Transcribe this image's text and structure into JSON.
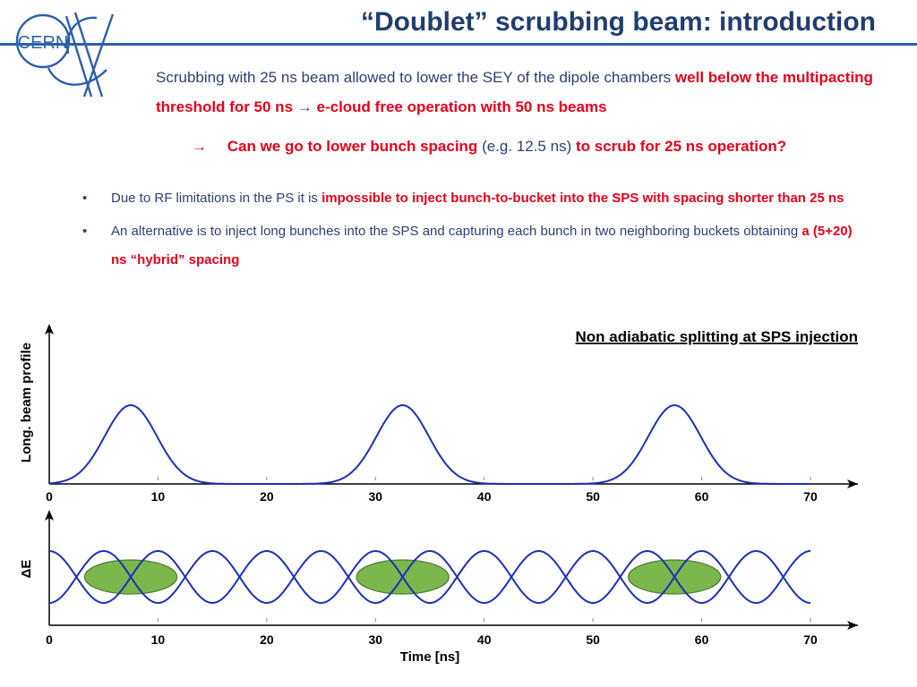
{
  "header": {
    "logo_text": "CERN",
    "title": "“Doublet” scrubbing beam: introduction"
  },
  "intro": {
    "p1_text": "Scrubbing with 25 ns beam allowed to lower the SEY of the dipole chambers ",
    "p1_red": "well below the multipacting threshold for 50 ns",
    "p1_arrow": "→",
    "p1_red2": "e-cloud free operation with 50 ns beams",
    "p2_arrow": "→",
    "p2_red1": "Can we go to lower bunch spacing",
    "p2_gray": "(e.g. 12.5 ns)",
    "p2_red2": "to scrub for 25 ns operation?"
  },
  "bullets": [
    {
      "dot": "•",
      "text": "Due to RF limitations in the PS it is ",
      "red": "impossible to inject bunch-to-bucket into the SPS with spacing shorter than 25 ns"
    },
    {
      "dot": "•",
      "text": "An alternative is to inject long bunches into the SPS and capturing each bunch in two neighboring buckets obtaining ",
      "red": "a (5+20) ns “hybrid” spacing"
    }
  ],
  "chart_data": [
    {
      "type": "line",
      "title": "Non adiabatic splitting at SPS injection",
      "ylabel": "Long. beam profile",
      "xlabel": "",
      "xlim": [
        0,
        70
      ],
      "x_ticks": [
        0,
        10,
        20,
        30,
        40,
        50,
        60,
        70
      ],
      "series": [
        {
          "peaks": [
            7.5,
            32.5,
            57.5
          ],
          "sigma": 2.4,
          "color": "#1f2fb3"
        }
      ]
    },
    {
      "type": "line",
      "title": "",
      "ylabel": "ΔE",
      "xlabel": "Time [ns]",
      "xlim": [
        0,
        70
      ],
      "x_ticks": [
        0,
        10,
        20,
        30,
        40,
        50,
        60,
        70
      ],
      "series": [
        {
          "period_ns": 5,
          "color": "#1f2fb3"
        }
      ],
      "bunches": {
        "centers": [
          7.5,
          32.5,
          57.5
        ],
        "width_ns": 8.5,
        "fill": "#7ab84d",
        "stroke": "#4f7a30"
      }
    }
  ]
}
